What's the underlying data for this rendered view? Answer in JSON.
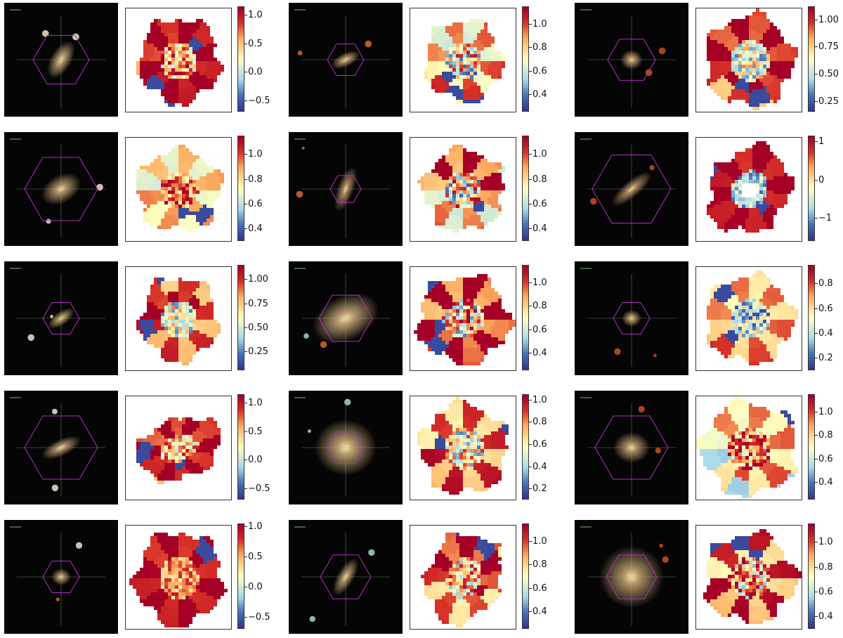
{
  "panels": [
    {
      "ticks": [
        "1.0",
        "0.5",
        "0.0",
        "−0.5"
      ],
      "range": [
        -0.7,
        1.15
      ],
      "gal": {
        "ang": -60,
        "a": 30,
        "b": 15,
        "hex": 40,
        "col": "#c8a878"
      },
      "map": {
        "rx": 58,
        "ry": 60,
        "rot": 0,
        "hole": 0,
        "center": 0.7,
        "edge": 0.95,
        "noise": 0.35,
        "blob": 0
      }
    },
    {
      "ticks": [
        "1.0",
        "0.8",
        "0.6",
        "0.4"
      ],
      "range": [
        0.25,
        1.15
      ],
      "gal": {
        "ang": -25,
        "a": 22,
        "b": 10,
        "hex": 26,
        "col": "#c8a070"
      },
      "map": {
        "rx": 55,
        "ry": 58,
        "rot": 0,
        "hole": 0,
        "center": 0.5,
        "edge": 0.7,
        "noise": 0.45,
        "blob": 0
      }
    },
    {
      "ticks": [
        "1.00",
        "0.75",
        "0.50",
        "0.25"
      ],
      "range": [
        0.15,
        1.12
      ],
      "gal": {
        "ang": 0,
        "a": 16,
        "b": 14,
        "hex": 34,
        "col": "#c8a070"
      },
      "map": {
        "rx": 62,
        "ry": 65,
        "rot": 0,
        "hole": 0,
        "center": 0.45,
        "edge": 0.85,
        "noise": 0.3,
        "blob": 0
      }
    },
    {
      "ticks": [
        "1.0",
        "0.8",
        "0.6",
        "0.4"
      ],
      "range": [
        0.3,
        1.15
      ],
      "gal": {
        "ang": -30,
        "a": 30,
        "b": 20,
        "hex": 52,
        "col": "#c0a070"
      },
      "map": {
        "rx": 60,
        "ry": 58,
        "rot": 0,
        "hole": 0,
        "center": 0.75,
        "edge": 0.6,
        "noise": 0.3,
        "blob": 0
      }
    },
    {
      "ticks": [
        "1.0",
        "0.8",
        "0.6",
        "0.4"
      ],
      "range": [
        0.3,
        1.15
      ],
      "gal": {
        "ang": -70,
        "a": 34,
        "b": 12,
        "hex": 22,
        "col": "#b89068"
      },
      "map": {
        "rx": 58,
        "ry": 58,
        "rot": 0,
        "hole": 0,
        "center": 0.55,
        "edge": 0.72,
        "noise": 0.45,
        "blob": 0
      }
    },
    {
      "ticks": [
        "1",
        "0",
        "−1"
      ],
      "range": [
        -1.6,
        1.15
      ],
      "gal": {
        "ang": -40,
        "a": 36,
        "b": 12,
        "hex": 56,
        "col": "#b89068"
      },
      "map": {
        "rx": 55,
        "ry": 65,
        "rot": 35,
        "hole": 12,
        "center": 0.3,
        "edge": 0.95,
        "noise": 0.2,
        "blob": 1
      }
    },
    {
      "ticks": [
        "1.00",
        "0.75",
        "0.50",
        "0.25"
      ],
      "range": [
        0.05,
        1.15
      ],
      "gal": {
        "ang": -35,
        "a": 22,
        "b": 10,
        "hex": 26,
        "col": "#c0a070"
      },
      "map": {
        "rx": 55,
        "ry": 60,
        "rot": 0,
        "hole": 0,
        "center": 0.45,
        "edge": 0.85,
        "noise": 0.3,
        "blob": 0
      }
    },
    {
      "ticks": [
        "1.0",
        "0.8",
        "0.6",
        "0.4"
      ],
      "range": [
        0.25,
        1.15
      ],
      "gal": {
        "ang": -25,
        "a": 50,
        "b": 32,
        "hex": 38,
        "col": "#c8a878"
      },
      "map": {
        "rx": 65,
        "ry": 62,
        "rot": 0,
        "hole": 0,
        "center": 0.6,
        "edge": 0.85,
        "noise": 0.45,
        "blob": 0
      }
    },
    {
      "ticks": [
        "0.8",
        "0.6",
        "0.4",
        "0.2"
      ],
      "range": [
        0.1,
        0.95
      ],
      "gal": {
        "ang": 0,
        "a": 14,
        "b": 12,
        "hex": 26,
        "col": "#c8a070"
      },
      "map": {
        "rx": 62,
        "ry": 62,
        "rot": 0,
        "hole": 0,
        "center": 0.35,
        "edge": 0.75,
        "noise": 0.3,
        "blob": 0
      }
    },
    {
      "ticks": [
        "1.0",
        "0.5",
        "0.0",
        "−0.5"
      ],
      "range": [
        -0.7,
        1.15
      ],
      "gal": {
        "ang": -25,
        "a": 30,
        "b": 12,
        "hex": 52,
        "col": "#c0a070"
      },
      "map": {
        "rx": 62,
        "ry": 42,
        "rot": -20,
        "hole": 0,
        "center": 0.65,
        "edge": 0.88,
        "noise": 0.3,
        "blob": 0
      }
    },
    {
      "ticks": [
        "1.0",
        "0.8",
        "0.6",
        "0.4",
        "0.2"
      ],
      "range": [
        0.1,
        1.05
      ],
      "gal": {
        "ang": 0,
        "a": 44,
        "b": 40,
        "hex": 26,
        "col": "#c8a878"
      },
      "map": {
        "rx": 62,
        "ry": 64,
        "rot": 0,
        "hole": 0,
        "center": 0.5,
        "edge": 0.8,
        "noise": 0.4,
        "blob": 0
      }
    },
    {
      "ticks": [
        "1.0",
        "0.8",
        "0.6",
        "0.4"
      ],
      "range": [
        0.25,
        1.15
      ],
      "gal": {
        "ang": 0,
        "a": 26,
        "b": 22,
        "hex": 52,
        "col": "#c0a070"
      },
      "map": {
        "rx": 68,
        "ry": 66,
        "rot": 0,
        "hole": 0,
        "center": 0.75,
        "edge": 0.55,
        "noise": 0.35,
        "blob": 0
      }
    },
    {
      "ticks": [
        "1.0",
        "0.5",
        "0.0",
        "−0.5"
      ],
      "range": [
        -0.7,
        1.05
      ],
      "gal": {
        "ang": 0,
        "a": 14,
        "b": 12,
        "hex": 26,
        "col": "#c0a070"
      },
      "map": {
        "rx": 62,
        "ry": 66,
        "rot": 0,
        "hole": 0,
        "center": 0.72,
        "edge": 0.95,
        "noise": 0.2,
        "blob": 0
      }
    },
    {
      "ticks": [
        "1.0",
        "0.8",
        "0.6",
        "0.4"
      ],
      "range": [
        0.25,
        1.15
      ],
      "gal": {
        "ang": -60,
        "a": 30,
        "b": 12,
        "hex": 36,
        "col": "#c0a070"
      },
      "map": {
        "rx": 52,
        "ry": 66,
        "rot": 20,
        "hole": 0,
        "center": 0.6,
        "edge": 0.8,
        "noise": 0.35,
        "blob": 0
      }
    },
    {
      "ticks": [
        "1.0",
        "0.8",
        "0.6",
        "0.4"
      ],
      "range": [
        0.3,
        1.15
      ],
      "gal": {
        "ang": 0,
        "a": 46,
        "b": 44,
        "hex": 36,
        "col": "#c0a070"
      },
      "map": {
        "rx": 65,
        "ry": 63,
        "rot": 0,
        "hole": 0,
        "center": 0.7,
        "edge": 0.75,
        "noise": 0.45,
        "blob": 0
      }
    }
  ]
}
